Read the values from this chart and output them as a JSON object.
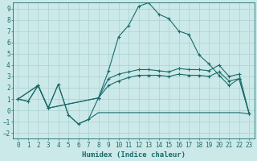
{
  "xlabel": "Humidex (Indice chaleur)",
  "background_color": "#cce9e9",
  "grid_color": "#afd4d4",
  "line_color": "#1a6b6b",
  "xlim": [
    -0.5,
    23.5
  ],
  "ylim": [
    -2.5,
    9.5
  ],
  "xticks": [
    0,
    1,
    2,
    3,
    4,
    5,
    6,
    7,
    8,
    9,
    10,
    11,
    12,
    13,
    14,
    15,
    16,
    17,
    18,
    19,
    20,
    21,
    22,
    23
  ],
  "yticks": [
    -2,
    -1,
    0,
    1,
    2,
    3,
    4,
    5,
    6,
    7,
    8,
    9
  ],
  "curve1_x": [
    0,
    1,
    2,
    3,
    4,
    5,
    6,
    7,
    8,
    9,
    10,
    11,
    12,
    13,
    14,
    15,
    16,
    17,
    18,
    19,
    20,
    21,
    22,
    23
  ],
  "curve1_y": [
    1.0,
    0.8,
    2.2,
    0.2,
    2.3,
    -0.4,
    -1.2,
    -0.8,
    1.1,
    3.5,
    6.5,
    7.5,
    9.2,
    9.5,
    8.5,
    8.1,
    7.0,
    6.7,
    4.9,
    4.1,
    3.1,
    2.2,
    2.8,
    -0.3
  ],
  "curve2_x": [
    0,
    1,
    2,
    3,
    4,
    5,
    6,
    7,
    8,
    9,
    10,
    11,
    12,
    13,
    14,
    15,
    16,
    17,
    18,
    19,
    20,
    21,
    22,
    23
  ],
  "curve2_y": [
    1.0,
    0.8,
    2.2,
    0.2,
    2.3,
    -0.4,
    -1.2,
    -0.8,
    -0.2,
    -0.2,
    -0.2,
    -0.2,
    -0.2,
    -0.2,
    -0.2,
    -0.2,
    -0.2,
    -0.2,
    -0.2,
    -0.2,
    -0.2,
    -0.2,
    -0.2,
    -0.3
  ],
  "curve3_x": [
    0,
    2,
    3,
    8,
    9,
    10,
    11,
    12,
    13,
    14,
    15,
    16,
    17,
    18,
    19,
    20,
    21,
    22,
    23
  ],
  "curve3_y": [
    1.0,
    2.2,
    0.2,
    1.1,
    2.8,
    3.2,
    3.4,
    3.6,
    3.6,
    3.5,
    3.4,
    3.7,
    3.6,
    3.6,
    3.5,
    4.0,
    3.0,
    3.2,
    -0.3
  ],
  "curve4_x": [
    0,
    2,
    3,
    8,
    9,
    10,
    11,
    12,
    13,
    14,
    15,
    16,
    17,
    18,
    19,
    20,
    21,
    22,
    23
  ],
  "curve4_y": [
    1.0,
    2.2,
    0.2,
    1.1,
    2.2,
    2.6,
    2.9,
    3.1,
    3.1,
    3.1,
    3.0,
    3.2,
    3.1,
    3.1,
    3.0,
    3.4,
    2.6,
    2.8,
    -0.3
  ]
}
